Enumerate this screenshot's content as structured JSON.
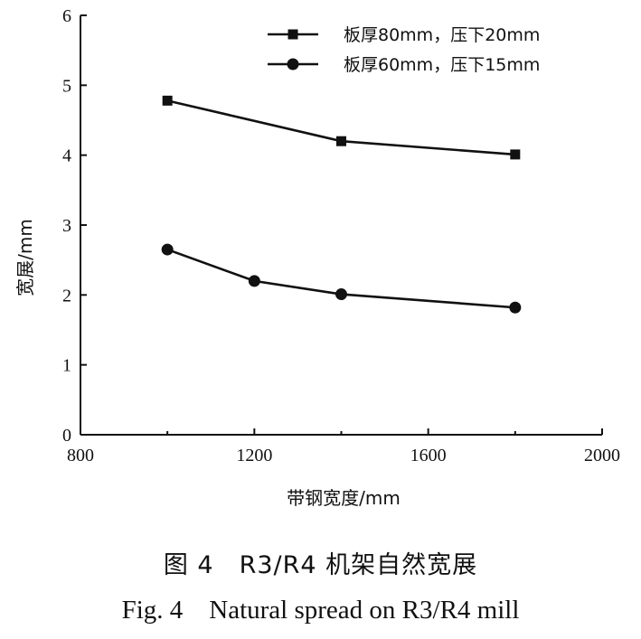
{
  "chart_data": {
    "type": "line",
    "title": "",
    "xlabel": "带钢宽度/mm",
    "ylabel": "宽展/mm",
    "xlim": [
      800,
      2000
    ],
    "ylim": [
      0,
      6
    ],
    "x_ticks": [
      "800",
      "1200",
      "1600",
      "2000"
    ],
    "y_ticks": [
      "0",
      "1",
      "2",
      "3",
      "4",
      "5",
      "6"
    ],
    "legend_position": "top-right",
    "grid": false,
    "series": [
      {
        "name": "板厚80mm，压下20mm",
        "marker": "square",
        "x": [
          1000,
          1400,
          1800
        ],
        "y": [
          4.78,
          4.2,
          4.01
        ]
      },
      {
        "name": "板厚60mm，压下15mm",
        "marker": "circle",
        "x": [
          1000,
          1200,
          1400,
          1800
        ],
        "y": [
          2.65,
          2.2,
          2.01,
          1.82
        ]
      }
    ]
  },
  "caption": {
    "cn": "图 4　R3/R4 机架自然宽展",
    "en": "Fig. 4　Natural spread on R3/R4 mill"
  }
}
